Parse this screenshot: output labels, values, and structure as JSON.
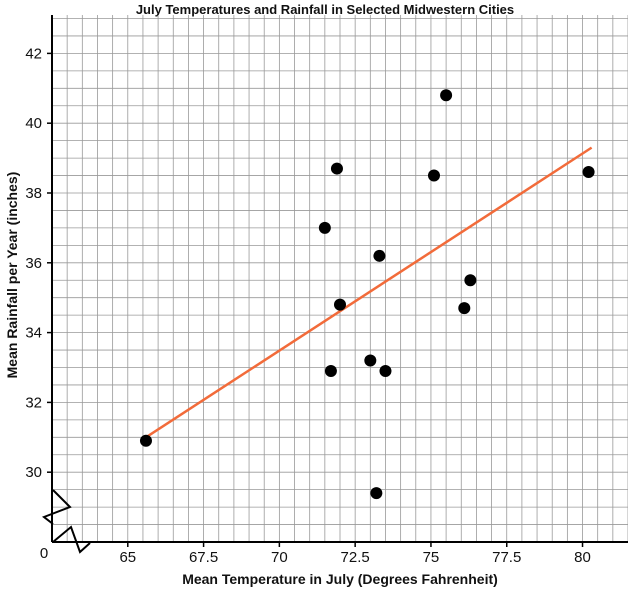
{
  "chart_data": {
    "type": "scatter",
    "title": "July Temperatures and Rainfall in Selected Midwestern Cities",
    "xlabel": "Mean Temperature in July (Degrees Fahrenheit)",
    "ylabel": "Mean Rainfall per Year (inches)",
    "xticks": [
      "65",
      "67.5",
      "70",
      "72.5",
      "75",
      "77.5",
      "80"
    ],
    "yticks": [
      "30",
      "32",
      "34",
      "36",
      "38",
      "40",
      "42"
    ],
    "origin_label": "0",
    "axis_break": true,
    "grid": true,
    "xlim": [
      62.5,
      81.5
    ],
    "ylim": [
      28,
      43.1
    ],
    "points": [
      {
        "x": 65.6,
        "y": 30.9
      },
      {
        "x": 71.5,
        "y": 37.0
      },
      {
        "x": 71.9,
        "y": 38.7
      },
      {
        "x": 71.7,
        "y": 32.9
      },
      {
        "x": 72.0,
        "y": 34.8
      },
      {
        "x": 73.0,
        "y": 33.2
      },
      {
        "x": 73.3,
        "y": 36.2
      },
      {
        "x": 73.2,
        "y": 29.4
      },
      {
        "x": 73.5,
        "y": 32.9
      },
      {
        "x": 75.1,
        "y": 38.5
      },
      {
        "x": 75.5,
        "y": 40.8
      },
      {
        "x": 76.1,
        "y": 34.7
      },
      {
        "x": 76.3,
        "y": 35.5
      },
      {
        "x": 80.2,
        "y": 38.6
      }
    ],
    "trendline": {
      "x": [
        65.6,
        80.3
      ],
      "y": [
        31.0,
        39.3
      ],
      "color": "#f26b3a"
    },
    "point_color": "#000000"
  }
}
